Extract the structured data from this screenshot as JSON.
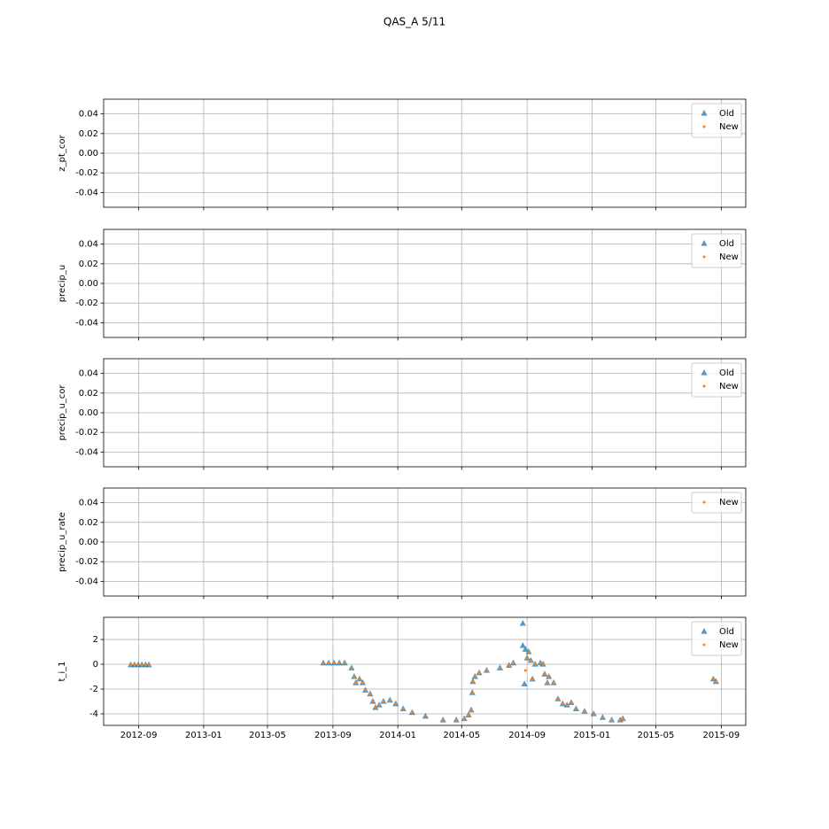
{
  "title": "QAS_A 5/11",
  "chart_data": [
    {
      "type": "scatter",
      "ylabel": "z_pt_cor",
      "ylim": [
        -0.055,
        0.055
      ],
      "yticks": [
        -0.04,
        -0.02,
        {
          "value": 0,
          "label": "0.00"
        },
        0.02,
        0.04
      ],
      "grid": true,
      "legend": "upper right",
      "series": [
        {
          "name": "Old",
          "color": "#1f77b4",
          "marker": "triangle",
          "x": [],
          "values": []
        },
        {
          "name": "New",
          "color": "#ff7f0e",
          "marker": "dot",
          "x": [],
          "values": []
        }
      ]
    },
    {
      "type": "scatter",
      "ylabel": "precip_u",
      "ylim": [
        -0.055,
        0.055
      ],
      "yticks": [
        -0.04,
        -0.02,
        {
          "value": 0,
          "label": "0.00"
        },
        0.02,
        0.04
      ],
      "grid": true,
      "legend": "upper right",
      "series": [
        {
          "name": "Old",
          "color": "#1f77b4",
          "marker": "triangle",
          "x": [],
          "values": []
        },
        {
          "name": "New",
          "color": "#ff7f0e",
          "marker": "dot",
          "x": [],
          "values": []
        }
      ]
    },
    {
      "type": "scatter",
      "ylabel": "precip_u_cor",
      "ylim": [
        -0.055,
        0.055
      ],
      "yticks": [
        -0.04,
        -0.02,
        {
          "value": 0,
          "label": "0.00"
        },
        0.02,
        0.04
      ],
      "grid": true,
      "legend": "upper right",
      "series": [
        {
          "name": "Old",
          "color": "#1f77b4",
          "marker": "triangle",
          "x": [],
          "values": []
        },
        {
          "name": "New",
          "color": "#ff7f0e",
          "marker": "dot",
          "x": [],
          "values": []
        }
      ]
    },
    {
      "type": "scatter",
      "ylabel": "precip_u_rate",
      "ylim": [
        -0.055,
        0.055
      ],
      "yticks": [
        -0.04,
        -0.02,
        {
          "value": 0,
          "label": "0.00"
        },
        0.02,
        0.04
      ],
      "grid": true,
      "legend": "upper right",
      "series": [
        {
          "name": "New",
          "color": "#ff7f0e",
          "marker": "dot",
          "x": [],
          "values": []
        }
      ]
    },
    {
      "type": "scatter",
      "ylabel": "t_i_1",
      "ylim": [
        -4.93,
        3.79
      ],
      "yticks": [
        -4,
        -2,
        0,
        2
      ],
      "grid": true,
      "legend": "upper right",
      "xlim": [
        "2012-06-27",
        "2015-10-17"
      ],
      "xticks": [
        {
          "value": "2012-09-01",
          "label": "2012-09"
        },
        {
          "value": "2013-01-01",
          "label": "2013-01"
        },
        {
          "value": "2013-05-01",
          "label": "2013-05"
        },
        {
          "value": "2013-09-01",
          "label": "2013-09"
        },
        {
          "value": "2014-01-01",
          "label": "2014-01"
        },
        {
          "value": "2014-05-01",
          "label": "2014-05"
        },
        {
          "value": "2014-09-01",
          "label": "2014-09"
        },
        {
          "value": "2015-01-01",
          "label": "2015-01"
        },
        {
          "value": "2015-05-01",
          "label": "2015-05"
        },
        {
          "value": "2015-09-01",
          "label": "2015-09"
        }
      ],
      "series": [
        {
          "name": "Old",
          "color": "#1f77b4",
          "marker": "triangle",
          "x": [
            "2012-08-17",
            "2012-08-24",
            "2012-08-31",
            "2012-09-07",
            "2012-09-14",
            "2012-09-20",
            "2013-08-14",
            "2013-08-24",
            "2013-09-03",
            "2013-09-13",
            "2013-09-23",
            "2013-10-06",
            "2013-10-11",
            "2013-10-14",
            "2013-10-21",
            "2013-10-27",
            "2013-11-01",
            "2013-11-10",
            "2013-11-15",
            "2013-11-20",
            "2013-11-27",
            "2013-12-05",
            "2013-12-17",
            "2013-12-28",
            "2014-01-11",
            "2014-01-28",
            "2014-02-22",
            "2014-03-27",
            "2014-04-21",
            "2014-05-06",
            "2014-05-14",
            "2014-05-19",
            "2014-05-21",
            "2014-05-22",
            "2014-05-26",
            "2014-06-03",
            "2014-06-17",
            "2014-07-12",
            "2014-07-29",
            "2014-08-06",
            "2014-08-24",
            "2014-08-24",
            "2014-08-27",
            "2014-08-29",
            "2014-09-01",
            "2014-09-04",
            "2014-09-08",
            "2014-09-11",
            "2014-09-16",
            "2014-09-26",
            "2014-10-01",
            "2014-10-04",
            "2014-10-09",
            "2014-10-12",
            "2014-10-21",
            "2014-10-29",
            "2014-11-07",
            "2014-11-15",
            "2014-11-23",
            "2014-12-02",
            "2014-12-18",
            "2015-01-04",
            "2015-01-21",
            "2015-02-07",
            "2015-02-23",
            "2015-02-28",
            "2015-08-17",
            "2015-08-22"
          ],
          "values": [
            -0.05,
            -0.05,
            -0.05,
            -0.05,
            -0.05,
            -0.05,
            0.1,
            0.1,
            0.1,
            0.1,
            0.1,
            -0.3,
            -1.0,
            -1.5,
            -1.2,
            -1.5,
            -2.1,
            -2.4,
            -3.0,
            -3.5,
            -3.3,
            -3.0,
            -2.9,
            -3.2,
            -3.6,
            -3.9,
            -4.2,
            -4.5,
            -4.5,
            -4.4,
            -4.1,
            -3.7,
            -2.3,
            -1.4,
            -1.0,
            -0.7,
            -0.5,
            -0.3,
            -0.1,
            0.1,
            3.3,
            1.5,
            -1.6,
            1.2,
            0.5,
            1.0,
            0.3,
            -1.2,
            0.0,
            0.1,
            0.0,
            -0.8,
            -1.5,
            -1.0,
            -1.5,
            -2.8,
            -3.2,
            -3.3,
            -3.1,
            -3.6,
            -3.8,
            -4.0,
            -4.3,
            -4.5,
            -4.5,
            -4.4,
            -1.2,
            -1.4
          ]
        },
        {
          "name": "New",
          "color": "#ff7f0e",
          "marker": "dot",
          "x": [
            "2012-08-17",
            "2012-08-24",
            "2012-08-31",
            "2012-09-07",
            "2012-09-14",
            "2012-09-20",
            "2013-08-14",
            "2013-08-24",
            "2013-09-03",
            "2013-09-13",
            "2013-09-23",
            "2013-10-06",
            "2013-10-11",
            "2013-10-14",
            "2013-10-21",
            "2013-10-27",
            "2013-11-01",
            "2013-11-10",
            "2013-11-15",
            "2013-11-20",
            "2013-11-27",
            "2013-12-05",
            "2013-12-17",
            "2013-12-28",
            "2014-01-11",
            "2014-01-28",
            "2014-02-22",
            "2014-03-27",
            "2014-04-21",
            "2014-05-06",
            "2014-05-14",
            "2014-05-19",
            "2014-05-21",
            "2014-05-22",
            "2014-05-26",
            "2014-06-03",
            "2014-06-17",
            "2014-07-12",
            "2014-07-29",
            "2014-08-06",
            "2014-08-29",
            "2014-09-01",
            "2014-09-04",
            "2014-09-08",
            "2014-09-11",
            "2014-09-16",
            "2014-09-26",
            "2014-10-01",
            "2014-10-04",
            "2014-10-09",
            "2014-10-12",
            "2014-10-21",
            "2014-10-29",
            "2014-11-07",
            "2014-11-15",
            "2014-11-23",
            "2014-12-02",
            "2014-12-18",
            "2015-01-04",
            "2015-01-21",
            "2015-02-07",
            "2015-02-23",
            "2015-02-28",
            "2015-08-17",
            "2015-08-22"
          ],
          "values": [
            -0.05,
            -0.05,
            -0.05,
            -0.05,
            -0.05,
            -0.05,
            0.1,
            0.1,
            0.1,
            0.1,
            0.1,
            -0.3,
            -1.0,
            -1.5,
            -1.2,
            -1.5,
            -2.1,
            -2.4,
            -3.0,
            -3.5,
            -3.3,
            -3.0,
            -2.9,
            -3.2,
            -3.6,
            -3.9,
            -4.2,
            -4.5,
            -4.5,
            -4.4,
            -4.1,
            -3.7,
            -2.3,
            -1.4,
            -1.0,
            -0.7,
            -0.5,
            -0.3,
            -0.1,
            0.1,
            -0.5,
            0.5,
            1.0,
            0.3,
            -1.2,
            0.0,
            0.1,
            0.0,
            -0.8,
            -1.5,
            -1.0,
            -1.5,
            -2.8,
            -3.2,
            -3.3,
            -3.1,
            -3.6,
            -3.8,
            -4.0,
            -4.3,
            -4.5,
            -4.5,
            -4.4,
            -1.2,
            -1.4
          ]
        }
      ]
    }
  ]
}
